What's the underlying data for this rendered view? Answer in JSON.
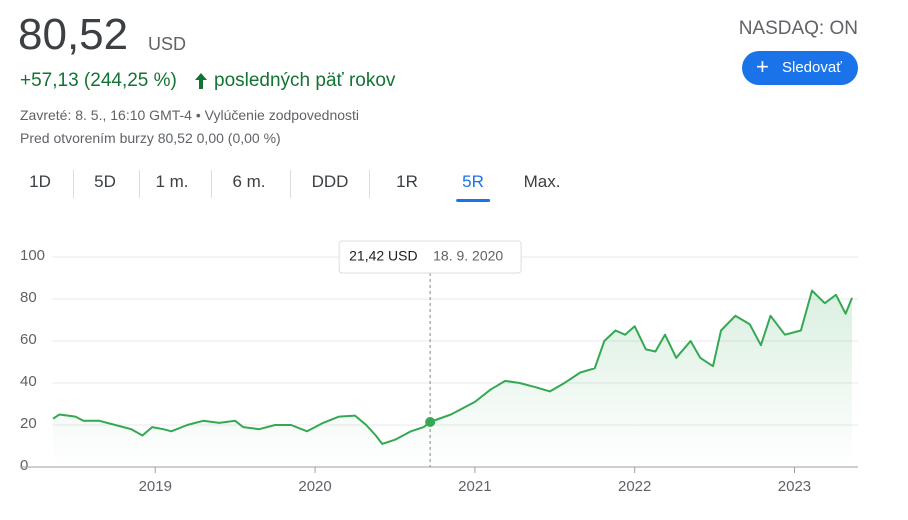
{
  "header": {
    "price": "80,52",
    "currency": "USD",
    "change": "+57,13 (244,25 %)",
    "period": "posledných päť rokov",
    "exchange": "NASDAQ: ON",
    "follow_button": "Sledovať",
    "closed": "Zavreté: 8. 5., 16:10 GMT-4 •",
    "disclaimer": "Vylúčenie zodpovednosti",
    "premarket": "Pred otvorením burzy 80,52 0,00 (0,00 %)"
  },
  "tabs": [
    "1D",
    "5D",
    "1 m.",
    "6 m.",
    "DDD",
    "1R",
    "5R",
    "Max."
  ],
  "active_tab": 6,
  "chart_data": {
    "type": "line",
    "x": [
      2018.36,
      2018.4,
      2018.5,
      2018.55,
      2018.65,
      2018.75,
      2018.85,
      2018.92,
      2018.98,
      2019.05,
      2019.1,
      2019.2,
      2019.3,
      2019.4,
      2019.5,
      2019.55,
      2019.65,
      2019.75,
      2019.85,
      2019.95,
      2020.05,
      2020.15,
      2020.25,
      2020.32,
      2020.38,
      2020.42,
      2020.5,
      2020.6,
      2020.68,
      2020.72,
      2020.85,
      2021.0,
      2021.1,
      2021.19,
      2021.28,
      2021.38,
      2021.47,
      2021.56,
      2021.66,
      2021.75,
      2021.81,
      2021.88,
      2021.94,
      2022.0,
      2022.07,
      2022.13,
      2022.19,
      2022.26,
      2022.35,
      2022.41,
      2022.49,
      2022.54,
      2022.63,
      2022.72,
      2022.79,
      2022.85,
      2022.94,
      2023.04,
      2023.11,
      2023.19,
      2023.26,
      2023.32,
      2023.36
    ],
    "series": [
      {
        "color": "#34a853",
        "values": [
          23,
          25,
          24,
          22,
          22,
          20,
          18,
          15,
          19,
          18,
          17,
          20,
          22,
          21,
          22,
          19,
          18,
          20,
          20,
          17,
          21,
          24,
          24.5,
          20,
          15,
          11,
          13,
          17,
          19,
          21.42,
          25,
          31,
          37,
          41,
          40,
          38,
          36,
          40,
          45,
          47,
          60,
          65,
          63,
          67,
          56,
          55,
          63,
          52,
          60,
          52,
          48,
          65,
          72,
          68,
          58,
          72,
          63,
          65,
          84,
          78,
          82,
          73,
          80.52
        ]
      }
    ],
    "xlim": [
      2018.36,
      2023.36
    ],
    "xticks": [
      2019,
      2020,
      2021,
      2022,
      2023
    ],
    "ylim": [
      0,
      100
    ],
    "yticks": [
      0,
      20,
      40,
      60,
      80,
      100
    ],
    "grid": true,
    "tooltip": {
      "index": 29,
      "price": "21,42 USD",
      "date": "18. 9. 2020"
    }
  }
}
